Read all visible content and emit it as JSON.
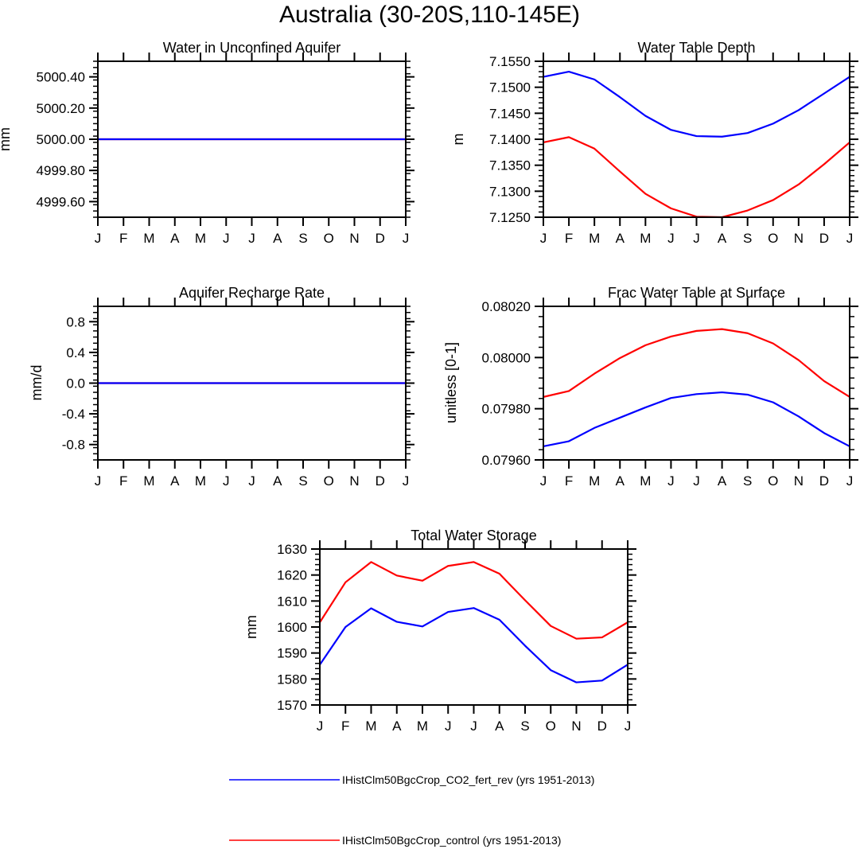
{
  "figure": {
    "title": "Australia (30-20S,110-145E)"
  },
  "colors": {
    "co2_fert_rev": "#0000ff",
    "control": "#ff0000",
    "axis": "#000000",
    "background": "#ffffff"
  },
  "legend": {
    "entries": [
      {
        "label": "IHistClm50BgcCrop_CO2_fert_rev (yrs 1951-2013)",
        "color": "#0000ff"
      },
      {
        "label": "IHistClm50BgcCrop_control (yrs 1951-2013)",
        "color": "#ff0000"
      }
    ]
  },
  "chart_data": [
    {
      "type": "line",
      "title": "Water in Unconfined Aquifer",
      "ylabel": "mm",
      "x": [
        "J",
        "F",
        "M",
        "A",
        "M",
        "J",
        "J",
        "A",
        "S",
        "O",
        "N",
        "D",
        "J"
      ],
      "ylim": [
        4999.5,
        5000.5
      ],
      "yticks": [
        4999.6,
        4999.8,
        5000.0,
        5000.2,
        5000.4
      ],
      "yticklabels": [
        "4999.60",
        "4999.80",
        "5000.00",
        "5000.20",
        "5000.40"
      ],
      "series": [
        {
          "name": "IHistClm50BgcCrop_control (yrs 1951-2013)",
          "color": "#ff0000",
          "values": [
            5000,
            5000,
            5000,
            5000,
            5000,
            5000,
            5000,
            5000,
            5000,
            5000,
            5000,
            5000,
            5000
          ]
        },
        {
          "name": "IHistClm50BgcCrop_CO2_fert_rev (yrs 1951-2013)",
          "color": "#0000ff",
          "values": [
            5000,
            5000,
            5000,
            5000,
            5000,
            5000,
            5000,
            5000,
            5000,
            5000,
            5000,
            5000,
            5000
          ]
        }
      ]
    },
    {
      "type": "line",
      "title": "Water Table Depth",
      "ylabel": "m",
      "x": [
        "J",
        "F",
        "M",
        "A",
        "M",
        "J",
        "J",
        "A",
        "S",
        "O",
        "N",
        "D",
        "J"
      ],
      "ylim": [
        7.125,
        7.155
      ],
      "yticks": [
        7.125,
        7.13,
        7.135,
        7.14,
        7.145,
        7.15,
        7.155
      ],
      "yticklabels": [
        "7.1250",
        "7.1300",
        "7.1350",
        "7.1400",
        "7.1450",
        "7.1500",
        "7.1550"
      ],
      "series": [
        {
          "name": "IHistClm50BgcCrop_CO2_fert_rev (yrs 1951-2013)",
          "color": "#0000ff",
          "values": [
            7.152,
            7.153,
            7.1515,
            7.1481,
            7.1445,
            7.1418,
            7.1406,
            7.1405,
            7.1412,
            7.143,
            7.1456,
            7.1488,
            7.152
          ]
        },
        {
          "name": "IHistClm50BgcCrop_control (yrs 1951-2013)",
          "color": "#ff0000",
          "values": [
            7.1394,
            7.1404,
            7.1382,
            7.1338,
            7.1295,
            7.1267,
            7.1251,
            7.125,
            7.1263,
            7.1283,
            7.1313,
            7.1352,
            7.1394
          ]
        }
      ]
    },
    {
      "type": "line",
      "title": "Aquifer Recharge Rate",
      "ylabel": "mm/d",
      "x": [
        "J",
        "F",
        "M",
        "A",
        "M",
        "J",
        "J",
        "A",
        "S",
        "O",
        "N",
        "D",
        "J"
      ],
      "ylim": [
        -1.0,
        1.0
      ],
      "yticks": [
        -0.8,
        -0.4,
        0.0,
        0.4,
        0.8
      ],
      "yticklabels": [
        "-0.8",
        "-0.4",
        "0.0",
        "0.4",
        "0.8"
      ],
      "series": [
        {
          "name": "IHistClm50BgcCrop_control (yrs 1951-2013)",
          "color": "#ff0000",
          "values": [
            0,
            0,
            0,
            0,
            0,
            0,
            0,
            0,
            0,
            0,
            0,
            0,
            0
          ]
        },
        {
          "name": "IHistClm50BgcCrop_CO2_fert_rev (yrs 1951-2013)",
          "color": "#0000ff",
          "values": [
            0,
            0,
            0,
            0,
            0,
            0,
            0,
            0,
            0,
            0,
            0,
            0,
            0
          ]
        }
      ]
    },
    {
      "type": "line",
      "title": "Frac Water Table at Surface",
      "ylabel": "unitless [0-1]",
      "x": [
        "J",
        "F",
        "M",
        "A",
        "M",
        "J",
        "J",
        "A",
        "S",
        "O",
        "N",
        "D",
        "J"
      ],
      "ylim": [
        0.0796,
        0.0802
      ],
      "yticks": [
        0.0796,
        0.0798,
        0.08,
        0.0802
      ],
      "yticklabels": [
        "0.07960",
        "0.07980",
        "0.08000",
        "0.08020"
      ],
      "series": [
        {
          "name": "IHistClm50BgcCrop_CO2_fert_rev (yrs 1951-2013)",
          "color": "#0000ff",
          "values": [
            0.079653,
            0.079673,
            0.079725,
            0.079765,
            0.079805,
            0.079842,
            0.079857,
            0.079864,
            0.079855,
            0.079825,
            0.07977,
            0.079705,
            0.079653
          ]
        },
        {
          "name": "IHistClm50BgcCrop_control (yrs 1951-2013)",
          "color": "#ff0000",
          "values": [
            0.079846,
            0.079869,
            0.079937,
            0.079998,
            0.080048,
            0.080082,
            0.080104,
            0.080111,
            0.080095,
            0.080055,
            0.07999,
            0.079908,
            0.079846
          ]
        }
      ]
    },
    {
      "type": "line",
      "title": "Total Water Storage",
      "ylabel": "mm",
      "x": [
        "J",
        "F",
        "M",
        "A",
        "M",
        "J",
        "J",
        "A",
        "S",
        "O",
        "N",
        "D",
        "J"
      ],
      "ylim": [
        1570,
        1630
      ],
      "yticks": [
        1570,
        1580,
        1590,
        1600,
        1610,
        1620,
        1630
      ],
      "yticklabels": [
        "1570",
        "1580",
        "1590",
        "1600",
        "1610",
        "1620",
        "1630"
      ],
      "series": [
        {
          "name": "IHistClm50BgcCrop_CO2_fert_rev (yrs 1951-2013)",
          "color": "#0000ff",
          "values": [
            1585.5,
            1600,
            1607.2,
            1602,
            1600.2,
            1605.8,
            1607.3,
            1602.8,
            1592.8,
            1583.4,
            1578.7,
            1579.4,
            1585.5
          ]
        },
        {
          "name": "IHistClm50BgcCrop_control (yrs 1951-2013)",
          "color": "#ff0000",
          "values": [
            1601.8,
            1617.2,
            1625,
            1619.8,
            1617.8,
            1623.5,
            1625,
            1620.5,
            1610.3,
            1600.4,
            1595.5,
            1596,
            1601.8
          ]
        }
      ]
    }
  ]
}
